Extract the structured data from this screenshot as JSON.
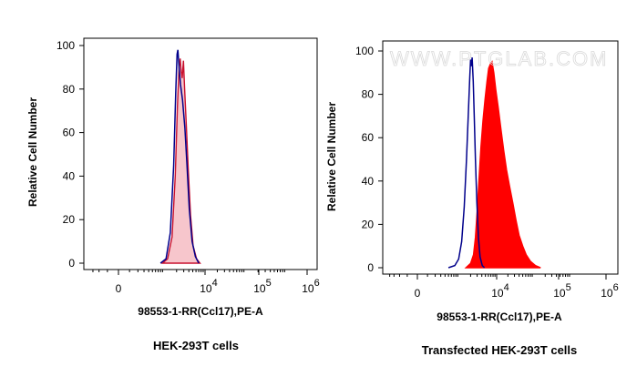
{
  "chart_data": [
    {
      "type": "area",
      "caption": "HEK-293T cells",
      "xlabel": "98553-1-RR(Ccl17),PE-A",
      "ylabel": "Relative Cell Number",
      "ylim": [
        0,
        100
      ],
      "y_ticks": [
        "0",
        "20",
        "40",
        "60",
        "80",
        "100"
      ],
      "x_ticks": [
        {
          "base": "0",
          "exp": ""
        },
        {
          "base": "10",
          "exp": "4"
        },
        {
          "base": "10",
          "exp": "5"
        },
        {
          "base": "10",
          "exp": "6"
        }
      ],
      "x_scale": "biexponential",
      "grid": false,
      "series": [
        {
          "style": "outline",
          "color": "#00008b",
          "points": [
            [
              800,
              0
            ],
            [
              1100,
              2
            ],
            [
              1400,
              14
            ],
            [
              1700,
              45
            ],
            [
              1900,
              78
            ],
            [
              2050,
              96
            ],
            [
              2150,
              98
            ],
            [
              2300,
              90
            ],
            [
              2500,
              82
            ],
            [
              2800,
              75
            ],
            [
              3200,
              62
            ],
            [
              3600,
              45
            ],
            [
              4100,
              25
            ],
            [
              4800,
              10
            ],
            [
              5800,
              3
            ],
            [
              7000,
              0
            ]
          ]
        },
        {
          "style": "filled",
          "color": "#c8102e",
          "fill": "#f7c6cc",
          "points": [
            [
              900,
              0
            ],
            [
              1200,
              2
            ],
            [
              1550,
              12
            ],
            [
              1850,
              40
            ],
            [
              2100,
              72
            ],
            [
              2300,
              90
            ],
            [
              2450,
              94
            ],
            [
              2600,
              88
            ],
            [
              2750,
              85
            ],
            [
              2950,
              93
            ],
            [
              3150,
              80
            ],
            [
              3500,
              62
            ],
            [
              3900,
              42
            ],
            [
              4400,
              22
            ],
            [
              5100,
              8
            ],
            [
              6200,
              2
            ],
            [
              7500,
              0
            ]
          ]
        }
      ]
    },
    {
      "type": "area",
      "caption": "Transfected HEK-293T cells",
      "xlabel": "98553-1-RR(Ccl17),PE-A",
      "ylabel": "Relative Cell Number",
      "watermark": "WWW.PTGLAB.COM",
      "ylim": [
        0,
        100
      ],
      "y_ticks": [
        "0",
        "20",
        "40",
        "60",
        "80",
        "100"
      ],
      "x_ticks": [
        {
          "base": "0",
          "exp": ""
        },
        {
          "base": "10",
          "exp": "4"
        },
        {
          "base": "10",
          "exp": "5"
        },
        {
          "base": "10",
          "exp": "6"
        }
      ],
      "x_scale": "biexponential",
      "grid": false,
      "series": [
        {
          "style": "filled",
          "color": "#ff0000",
          "fill": "#ff0000",
          "points": [
            [
              1500,
              0
            ],
            [
              2000,
              2
            ],
            [
              2400,
              6
            ],
            [
              2700,
              14
            ],
            [
              3000,
              26
            ],
            [
              3400,
              42
            ],
            [
              3800,
              56
            ],
            [
              4300,
              68
            ],
            [
              4900,
              78
            ],
            [
              5500,
              86
            ],
            [
              6100,
              92
            ],
            [
              6800,
              94
            ],
            [
              7500,
              95
            ],
            [
              8400,
              90
            ],
            [
              9500,
              82
            ],
            [
              11000,
              74
            ],
            [
              13000,
              64
            ],
            [
              15500,
              54
            ],
            [
              18500,
              45
            ],
            [
              22000,
              38
            ],
            [
              27000,
              30
            ],
            [
              33000,
              22
            ],
            [
              40000,
              15
            ],
            [
              50000,
              10
            ],
            [
              62000,
              6
            ],
            [
              80000,
              3
            ],
            [
              110000,
              1
            ],
            [
              150000,
              0
            ]
          ]
        },
        {
          "style": "outline",
          "color": "#00008b",
          "points": [
            [
              500,
              0
            ],
            [
              750,
              1
            ],
            [
              950,
              4
            ],
            [
              1150,
              12
            ],
            [
              1350,
              28
            ],
            [
              1550,
              50
            ],
            [
              1750,
              72
            ],
            [
              1900,
              88
            ],
            [
              2000,
              96
            ],
            [
              2100,
              93
            ],
            [
              2200,
              97
            ],
            [
              2350,
              86
            ],
            [
              2500,
              70
            ],
            [
              2700,
              50
            ],
            [
              2950,
              30
            ],
            [
              3250,
              14
            ],
            [
              3600,
              5
            ],
            [
              4100,
              1
            ],
            [
              4700,
              0
            ]
          ]
        }
      ]
    }
  ]
}
